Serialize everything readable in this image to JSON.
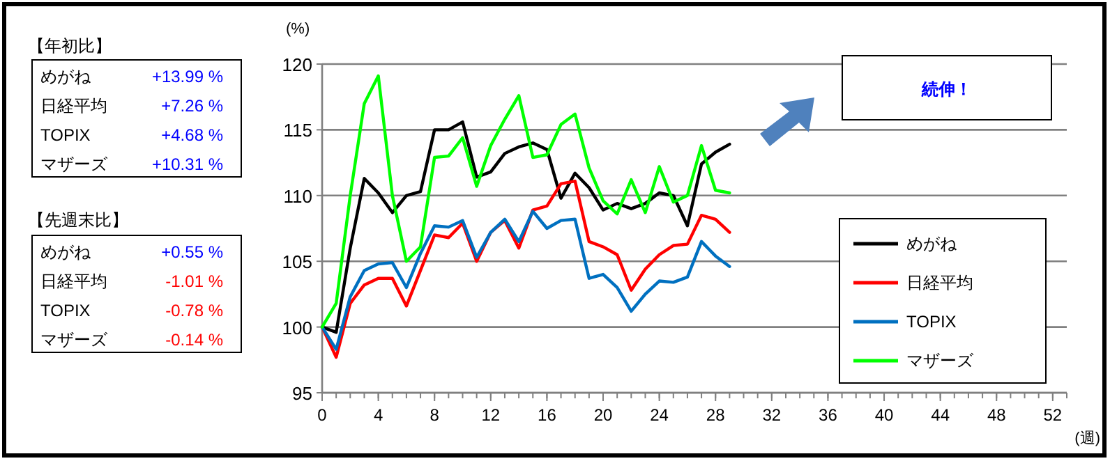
{
  "chart_data": {
    "type": "line",
    "ylabel": "(%)",
    "xlabel": "(週)",
    "x": [
      0,
      1,
      2,
      3,
      4,
      5,
      6,
      7,
      8,
      9,
      10,
      11,
      12,
      13,
      14,
      15,
      16,
      17,
      18,
      19,
      20,
      21,
      22,
      23,
      24,
      25,
      26,
      27,
      28,
      29
    ],
    "series": [
      {
        "name": "めがね",
        "color": "#000000",
        "values": [
          100,
          99.6,
          106,
          111.3,
          110.2,
          108.7,
          110.0,
          110.3,
          115.0,
          115.0,
          115.6,
          111.4,
          111.8,
          113.2,
          113.7,
          114.0,
          113.5,
          109.8,
          111.7,
          110.6,
          108.9,
          109.4,
          109.0,
          109.4,
          110.2,
          110.0,
          107.7,
          112.4,
          113.3,
          113.9
        ]
      },
      {
        "name": "日経平均",
        "color": "#ff0000",
        "values": [
          100,
          97.7,
          101.8,
          103.2,
          103.7,
          103.7,
          101.6,
          104.3,
          107.0,
          106.8,
          107.9,
          105.0,
          107.2,
          108.1,
          106.0,
          108.9,
          109.2,
          110.9,
          111.1,
          106.5,
          106.1,
          105.5,
          102.8,
          104.4,
          105.5,
          106.2,
          106.3,
          108.5,
          108.2,
          107.2
        ]
      },
      {
        "name": "TOPIX",
        "color": "#0070c0",
        "values": [
          100,
          98.3,
          102.3,
          104.3,
          104.8,
          104.9,
          103.0,
          105.6,
          107.7,
          107.6,
          108.1,
          105.3,
          107.2,
          108.2,
          106.5,
          108.8,
          107.5,
          108.1,
          108.2,
          103.7,
          104.0,
          103.0,
          101.2,
          102.5,
          103.5,
          103.4,
          103.8,
          106.5,
          105.4,
          104.6
        ]
      },
      {
        "name": "マザーズ",
        "color": "#00ff00",
        "values": [
          100,
          101.8,
          110,
          117,
          119.1,
          110,
          105,
          106.1,
          112.9,
          113.0,
          114.4,
          110.7,
          113.8,
          115.8,
          117.6,
          112.9,
          113.1,
          115.4,
          116.2,
          112.1,
          109.6,
          108.6,
          111.2,
          108.7,
          112.2,
          109.5,
          110.0,
          113.8,
          110.4,
          110.2
        ]
      }
    ],
    "xlim": [
      0,
      53
    ],
    "xticks": [
      0,
      4,
      8,
      12,
      16,
      20,
      24,
      28,
      32,
      36,
      40,
      44,
      48,
      52
    ],
    "ylim": [
      95,
      120
    ],
    "yticks": [
      95,
      100,
      105,
      110,
      115,
      120
    ],
    "grid": "y",
    "legend": "right",
    "marker": "none",
    "line_style": "solid",
    "annotations": [
      "【年初比】",
      "めがね",
      "+13.99 %",
      "日経平均",
      "+7.26 %",
      "TOPIX",
      "+4.68 %",
      "マザーズ",
      "+10.31 %",
      "【先週末比】",
      "めがね",
      "+0.55 %",
      "日経平均",
      "-1.01 %",
      "TOPIX",
      "-0.78 %",
      "マザーズ",
      "-0.14 %",
      "続伸！"
    ]
  }
}
